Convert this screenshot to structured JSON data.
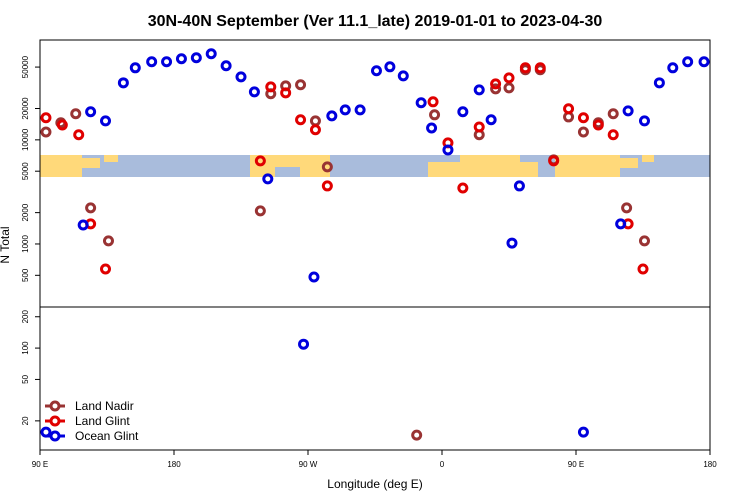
{
  "chart_data": {
    "type": "scatter",
    "title": "30N-40N September (Ver 11.1_late)   2019-01-01 to 2023-04-30",
    "xlabel": "Longitude (deg E)",
    "ylabel": "N Total",
    "xlim": [
      90,
      540
    ],
    "xticks": [
      {
        "value": 90,
        "label": "90 E"
      },
      {
        "value": 180,
        "label": "180"
      },
      {
        "value": 270,
        "label": "90 W"
      },
      {
        "value": 360,
        "label": "0"
      },
      {
        "value": 450,
        "label": "90 E"
      },
      {
        "value": 540,
        "label": "180"
      }
    ],
    "ylim": [
      10.5,
      91000
    ],
    "ylog": true,
    "yticks": [
      20,
      50,
      100,
      200,
      500,
      1000,
      2000,
      5000,
      10000,
      20000,
      50000
    ],
    "legend": "bottom-left",
    "series": [
      {
        "name": "Land Nadir",
        "color": "#993333",
        "x": [
          94,
          104,
          114,
          124,
          136,
          238,
          245,
          255,
          265,
          275,
          283,
          355,
          385,
          396,
          405,
          416,
          426,
          435,
          445,
          455,
          465,
          475,
          484,
          496,
          343
        ],
        "values": [
          11900,
          14600,
          17800,
          2220,
          1070,
          2080,
          27700,
          33000,
          33800,
          15200,
          5500,
          17400,
          11200,
          30900,
          31600,
          47100,
          47100,
          6430,
          16600,
          11900,
          14600,
          17800,
          2220,
          1070,
          14.6
        ]
      },
      {
        "name": "Land Glint",
        "color": "#e00000",
        "x": [
          94,
          105,
          116,
          124,
          134,
          238,
          245,
          255,
          265,
          275,
          283,
          354,
          364,
          374,
          385,
          396,
          405,
          416,
          426,
          435,
          445,
          455,
          465,
          475,
          485,
          495
        ],
        "values": [
          16300,
          13900,
          11200,
          1560,
          575,
          6280,
          32300,
          28300,
          15600,
          12500,
          3610,
          23200,
          9350,
          3450,
          13300,
          34500,
          39400,
          49200,
          49200,
          6280,
          19900,
          16300,
          13900,
          11200,
          1560,
          575
        ]
      },
      {
        "name": "Ocean Glint",
        "color": "#0000dd",
        "x": [
          94,
          119,
          124,
          134,
          146,
          154,
          165,
          175,
          185,
          195,
          205,
          215,
          225,
          234,
          243,
          274,
          267,
          286,
          295,
          305,
          316,
          325,
          334,
          346,
          353,
          364,
          374,
          385,
          393,
          407,
          412,
          455,
          480,
          485,
          496,
          506,
          515,
          525,
          536
        ],
        "values": [
          15.6,
          1520,
          18600,
          15200,
          35300,
          49200,
          56200,
          56200,
          60100,
          61400,
          67100,
          51500,
          40300,
          28900,
          4220,
          482,
          109,
          17000,
          19400,
          19400,
          46100,
          50300,
          41200,
          22700,
          13000,
          8000,
          18600,
          30200,
          15600,
          1020,
          3610,
          15.6,
          1560,
          19000,
          15200,
          35300,
          49200,
          56200,
          56200
        ]
      }
    ]
  }
}
